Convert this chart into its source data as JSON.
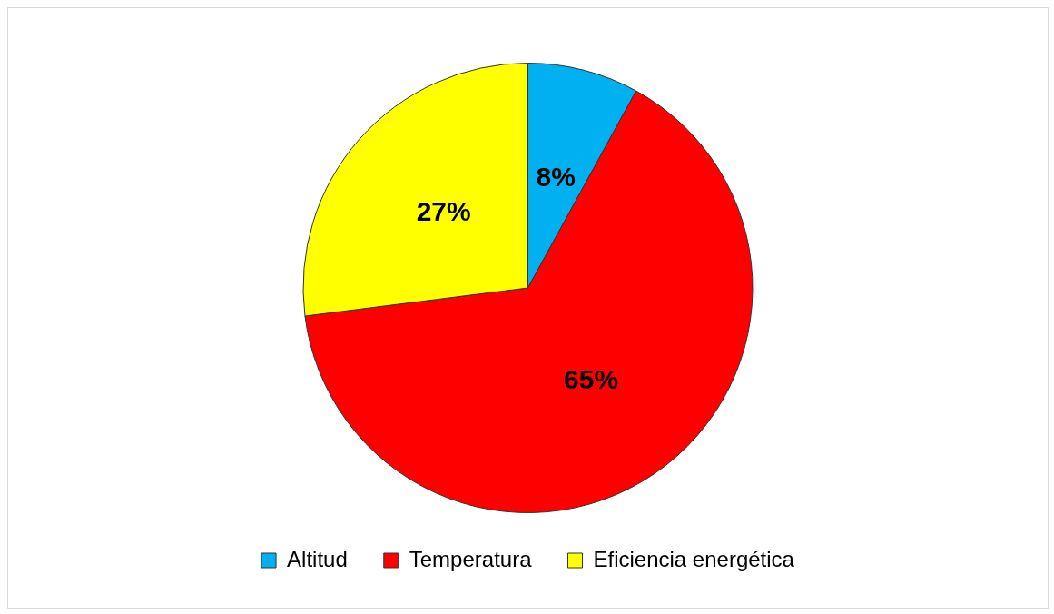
{
  "chart_data": {
    "type": "pie",
    "categories": [
      "Altitud",
      "Temperatura",
      "Eficiencia energética"
    ],
    "values": [
      8,
      65,
      27
    ],
    "colors": [
      "#00b0f0",
      "#ff0000",
      "#ffff00"
    ],
    "value_labels": [
      "8%",
      "65%",
      "27%"
    ],
    "legend": "bottom"
  }
}
